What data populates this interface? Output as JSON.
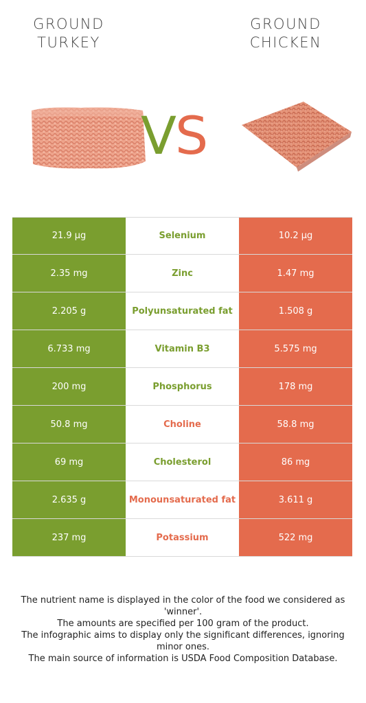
{
  "header": {
    "left_title": [
      "GROUND",
      "TURKEY"
    ],
    "right_title": [
      "GROUND",
      "CHICKEN"
    ],
    "vs_v": "V",
    "vs_s": "S"
  },
  "colors": {
    "left_food": "#7a9e2f",
    "right_food": "#e46b4d"
  },
  "chart_data": {
    "type": "table",
    "series": [
      {
        "name": "Ground Turkey"
      },
      {
        "name": "Ground Chicken"
      }
    ],
    "rows": [
      {
        "nutrient": "Selenium",
        "left": "21.9 µg",
        "right": "10.2 µg",
        "winner": "left"
      },
      {
        "nutrient": "Zinc",
        "left": "2.35 mg",
        "right": "1.47 mg",
        "winner": "left"
      },
      {
        "nutrient": "Polyunsaturated fat",
        "left": "2.205 g",
        "right": "1.508 g",
        "winner": "left"
      },
      {
        "nutrient": "Vitamin B3",
        "left": "6.733 mg",
        "right": "5.575 mg",
        "winner": "left"
      },
      {
        "nutrient": "Phosphorus",
        "left": "200 mg",
        "right": "178 mg",
        "winner": "left"
      },
      {
        "nutrient": "Choline",
        "left": "50.8 mg",
        "right": "58.8 mg",
        "winner": "right"
      },
      {
        "nutrient": "Cholesterol",
        "left": "69 mg",
        "right": "86 mg",
        "winner": "left"
      },
      {
        "nutrient": "Monounsaturated fat",
        "left": "2.635 g",
        "right": "3.611 g",
        "winner": "right"
      },
      {
        "nutrient": "Potassium",
        "left": "237 mg",
        "right": "522 mg",
        "winner": "right"
      }
    ]
  },
  "notes": [
    "The nutrient name is displayed in the color of the food we considered as 'winner'.",
    "The amounts are specified per 100 gram of the product.",
    "The infographic aims to display only the significant differences, ignoring minor ones.",
    "The main source of information is USDA Food Composition Database."
  ]
}
